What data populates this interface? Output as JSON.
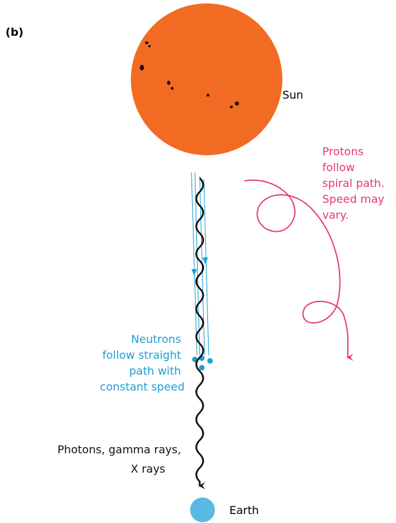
{
  "label": "(b)",
  "sun": {
    "label": "Sun"
  },
  "earth": {
    "label": "Earth"
  },
  "protons": {
    "lines": [
      "Protons",
      "follow",
      "spiral path.",
      "Speed may",
      "vary."
    ]
  },
  "neutrons": {
    "lines": [
      "Neutrons",
      "follow straight",
      "path with",
      "constant speed"
    ]
  },
  "photons": {
    "lines": [
      "Photons, gamma rays,",
      "X rays"
    ]
  }
}
